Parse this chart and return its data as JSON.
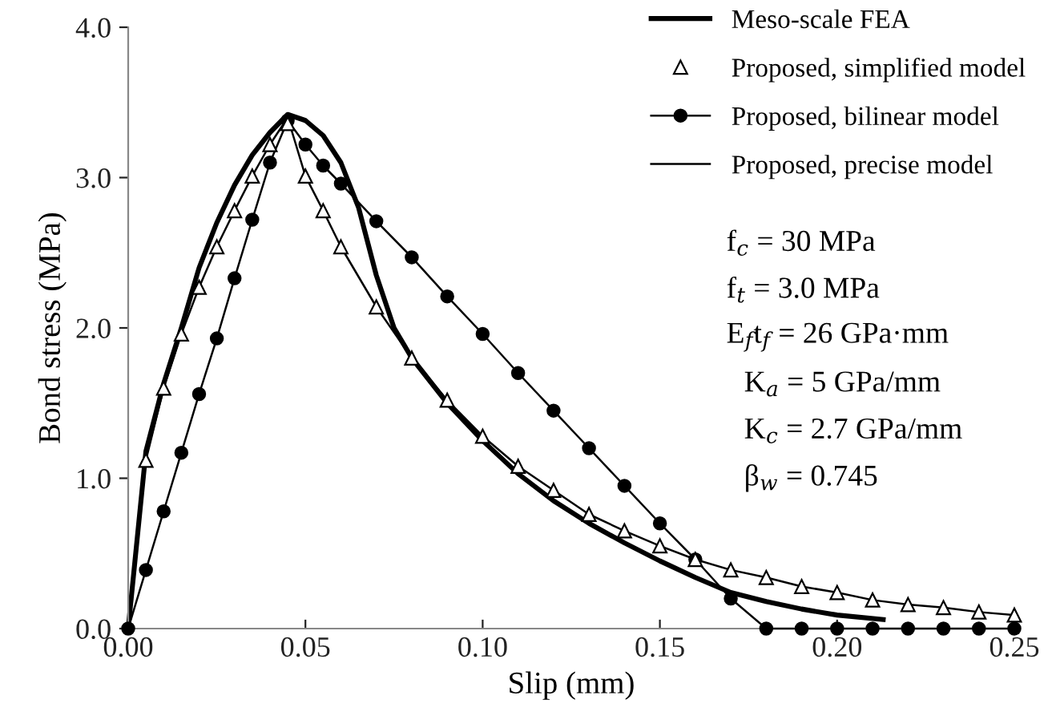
{
  "chart_data": {
    "type": "line",
    "xlabel": "Slip (mm)",
    "ylabel": "Bond stress (MPa)",
    "xlim": [
      0,
      0.25
    ],
    "ylim": [
      0,
      4.0
    ],
    "xticks": [
      {
        "value": 0,
        "label": "0.00"
      },
      {
        "value": 0.05,
        "label": "0.05"
      },
      {
        "value": 0.1,
        "label": "0.10"
      },
      {
        "value": 0.15,
        "label": "0.15"
      },
      {
        "value": 0.2,
        "label": "0.20"
      },
      {
        "value": 0.25,
        "label": "0.25"
      }
    ],
    "yticks": [
      {
        "value": 0,
        "label": "0.0"
      },
      {
        "value": 1,
        "label": "1.0"
      },
      {
        "value": 2,
        "label": "2.0"
      },
      {
        "value": 3,
        "label": "3.0"
      },
      {
        "value": 4,
        "label": "4.0"
      }
    ],
    "grid": false,
    "legend": "top right",
    "series": [
      {
        "name": "Meso-scale FEA",
        "color": "#000000",
        "marker": "none",
        "line_style": "solid",
        "x": [
          0,
          0.005,
          0.01,
          0.015,
          0.02,
          0.025,
          0.03,
          0.035,
          0.04,
          0.045,
          0.05,
          0.055,
          0.06,
          0.065,
          0.07,
          0.075,
          0.08,
          0.09,
          0.1,
          0.11,
          0.12,
          0.13,
          0.14,
          0.15,
          0.16,
          0.17,
          0.18,
          0.19,
          0.2,
          0.213
        ],
        "values": [
          0,
          1.18,
          1.63,
          2.0,
          2.4,
          2.7,
          2.95,
          3.15,
          3.3,
          3.42,
          3.38,
          3.28,
          3.1,
          2.8,
          2.35,
          2.0,
          1.8,
          1.5,
          1.25,
          1.03,
          0.85,
          0.7,
          0.57,
          0.45,
          0.34,
          0.24,
          0.18,
          0.13,
          0.09,
          0.06
        ]
      },
      {
        "name": "Proposed, simplified model",
        "type": "scatter",
        "color": "#000000",
        "marker": "triangle",
        "line_style": "none",
        "x": [
          0.005,
          0.01,
          0.015,
          0.02,
          0.025,
          0.03,
          0.035,
          0.04,
          0.045,
          0.05,
          0.055,
          0.06,
          0.07,
          0.08,
          0.09,
          0.1,
          0.11,
          0.12,
          0.13,
          0.14,
          0.15,
          0.16,
          0.17,
          0.18,
          0.19,
          0.2,
          0.21,
          0.22,
          0.23,
          0.24,
          0.25
        ],
        "values": [
          1.12,
          1.6,
          1.96,
          2.27,
          2.54,
          2.78,
          3.01,
          3.22,
          3.36,
          3.01,
          2.78,
          2.54,
          2.14,
          1.8,
          1.52,
          1.28,
          1.08,
          0.92,
          0.76,
          0.65,
          0.55,
          0.46,
          0.39,
          0.34,
          0.28,
          0.24,
          0.19,
          0.16,
          0.14,
          0.11,
          0.09
        ]
      },
      {
        "name": "Proposed, bilinear model",
        "color": "#000000",
        "marker": "circle",
        "line_style": "solid",
        "x": [
          0,
          0.005,
          0.01,
          0.015,
          0.02,
          0.025,
          0.03,
          0.035,
          0.04,
          0.045,
          0.05,
          0.055,
          0.06,
          0.07,
          0.08,
          0.09,
          0.1,
          0.11,
          0.12,
          0.13,
          0.14,
          0.15,
          0.16,
          0.17,
          0.18,
          0.19,
          0.2,
          0.21,
          0.22,
          0.23,
          0.24,
          0.25
        ],
        "values": [
          0,
          0.39,
          0.78,
          1.17,
          1.56,
          1.93,
          2.33,
          2.72,
          3.1,
          3.38,
          3.22,
          3.08,
          2.96,
          2.71,
          2.47,
          2.21,
          1.96,
          1.7,
          1.45,
          1.2,
          0.95,
          0.7,
          0.46,
          0.2,
          0,
          0,
          0,
          0,
          0,
          0,
          0,
          0
        ]
      },
      {
        "name": "Proposed, precise model",
        "color": "#000000",
        "marker": "none",
        "line_style": "solid",
        "x": [
          0,
          0.005,
          0.01,
          0.015,
          0.02,
          0.025,
          0.03,
          0.035,
          0.04,
          0.045,
          0.05,
          0.055,
          0.06,
          0.07,
          0.08,
          0.09,
          0.1,
          0.11,
          0.12,
          0.13,
          0.14,
          0.15,
          0.16,
          0.17,
          0.18,
          0.19,
          0.2,
          0.21,
          0.22,
          0.23,
          0.24,
          0.25
        ],
        "values": [
          0,
          1.12,
          1.6,
          1.96,
          2.27,
          2.54,
          2.78,
          3.01,
          3.22,
          3.4,
          3.01,
          2.78,
          2.54,
          2.14,
          1.8,
          1.52,
          1.28,
          1.08,
          0.92,
          0.76,
          0.65,
          0.55,
          0.46,
          0.39,
          0.34,
          0.28,
          0.24,
          0.19,
          0.16,
          0.14,
          0.11,
          0.09
        ]
      }
    ],
    "annotations": [
      "f$_{c}$ = 30 MPa",
      "f$_{t}$ = 3.0 MPa",
      "E$_{f}$t$_{f}$ = 26 GPa·mm",
      "K$_{a}$ = 5 GPa/mm",
      "K$_{c}$ = 2.7 GPa/mm",
      "β$_{w}$ = 0.745"
    ]
  }
}
